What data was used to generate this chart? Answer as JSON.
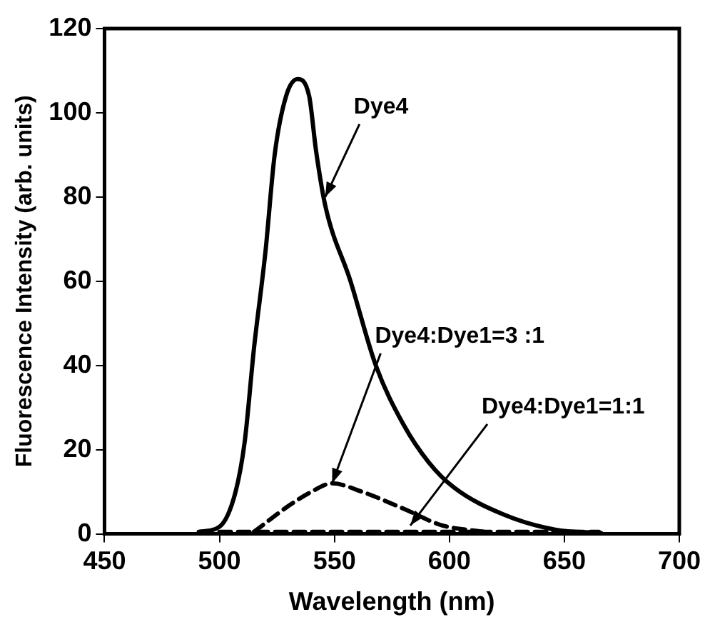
{
  "chart_data": {
    "type": "line",
    "xlabel": "Wavelength (nm)",
    "ylabel": "Fluorescence Intensity (arb. units)",
    "xlim": [
      450,
      700
    ],
    "xticks": [
      450,
      500,
      550,
      600,
      650,
      700
    ],
    "ylim": [
      0,
      120
    ],
    "yticks": [
      0,
      20,
      40,
      60,
      80,
      100,
      120
    ],
    "grid": false,
    "legend": false,
    "marker": "none",
    "series": [
      {
        "color": "#000000",
        "line_style": "solid",
        "x": [
          491,
          500,
          507,
          511,
          515,
          520,
          524,
          529,
          534,
          539,
          542,
          546,
          557,
          568,
          580,
          591,
          602,
          624,
          646,
          666
        ],
        "values": [
          0.5,
          1.7,
          10,
          22,
          44,
          67,
          90,
          104,
          108,
          104,
          91,
          78,
          60,
          40,
          26,
          17,
          11,
          4.5,
          1,
          0.2
        ]
      },
      {
        "color": "#000000",
        "line_style": "dashed",
        "x": [
          515,
          531,
          540,
          549,
          562,
          580,
          597,
          615
        ],
        "values": [
          0.5,
          7,
          10,
          12,
          10,
          6,
          2,
          0.5
        ]
      },
      {
        "color": "#000000",
        "line_style": "dashed",
        "x": [
          500,
          550,
          600,
          665
        ],
        "values": [
          0.5,
          0.5,
          0.5,
          0.5
        ]
      }
    ],
    "annotations": [
      {
        "text": "Dye4",
        "x": 546,
        "y": 80
      },
      {
        "text": "Dye4:Dye1=3 :1",
        "x": 549,
        "y": 12
      },
      {
        "text": "Dye4:Dye1=1:1",
        "x": 583,
        "y": 2
      }
    ]
  }
}
